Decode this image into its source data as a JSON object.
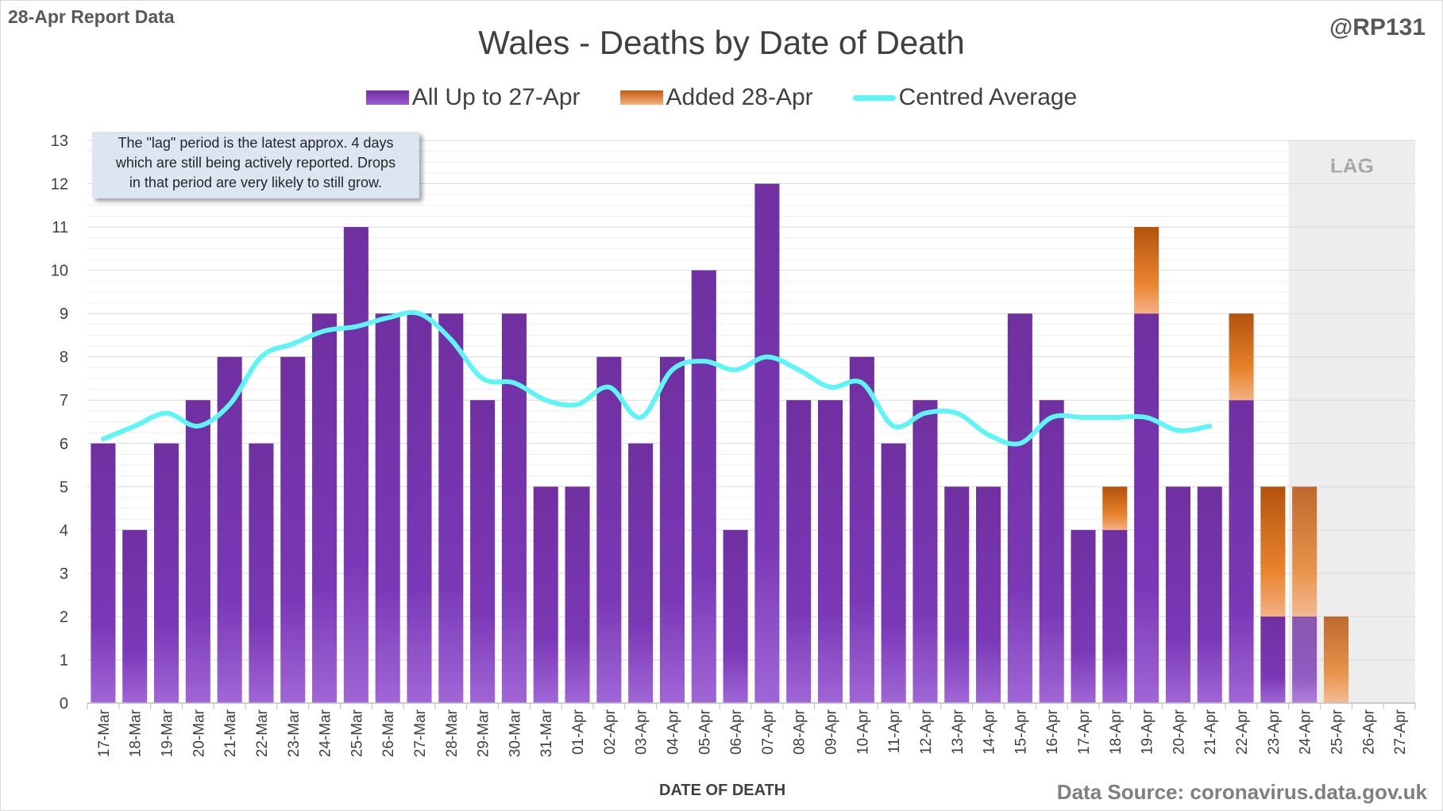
{
  "header": {
    "corner_note": "28-Apr Report Data",
    "author": "@RP131",
    "title": "Wales - Deaths by Date of Death",
    "source": "Data Source: coronavirus.data.gov.uk"
  },
  "legend": {
    "items": [
      {
        "label": "All Up to 27-Apr",
        "color": "#7030a0"
      },
      {
        "label": "Added 28-Apr",
        "color": "#c55a11"
      },
      {
        "label": "Centred Average",
        "color": "#5df5f5"
      }
    ]
  },
  "note": {
    "lines": [
      "The \"lag\" period is the latest approx. 4 days",
      "which are still being actively reported.  Drops",
      "in that period are very likely to still grow."
    ]
  },
  "lag_label": "LAG",
  "chart_data": {
    "type": "bar",
    "title": "Wales - Deaths by Date of Death",
    "xlabel": "DATE OF DEATH",
    "ylabel": "",
    "ylim": [
      0,
      13
    ],
    "yticks": [
      0,
      1,
      2,
      3,
      4,
      5,
      6,
      7,
      8,
      9,
      10,
      11,
      12,
      13
    ],
    "stacked": true,
    "grid": true,
    "legend_position": "top",
    "categories": [
      "17-Mar",
      "18-Mar",
      "19-Mar",
      "20-Mar",
      "21-Mar",
      "22-Mar",
      "23-Mar",
      "24-Mar",
      "25-Mar",
      "26-Mar",
      "27-Mar",
      "28-Mar",
      "29-Mar",
      "30-Mar",
      "31-Mar",
      "01-Apr",
      "02-Apr",
      "03-Apr",
      "04-Apr",
      "05-Apr",
      "06-Apr",
      "07-Apr",
      "08-Apr",
      "09-Apr",
      "10-Apr",
      "11-Apr",
      "12-Apr",
      "13-Apr",
      "14-Apr",
      "15-Apr",
      "16-Apr",
      "17-Apr",
      "18-Apr",
      "19-Apr",
      "20-Apr",
      "21-Apr",
      "22-Apr",
      "23-Apr",
      "24-Apr",
      "25-Apr",
      "26-Apr",
      "27-Apr"
    ],
    "series": [
      {
        "name": "All Up to 27-Apr",
        "type": "bar",
        "color": "#7030a0",
        "values": [
          6,
          4,
          6,
          7,
          8,
          6,
          8,
          9,
          11,
          9,
          9,
          9,
          7,
          9,
          5,
          5,
          8,
          6,
          8,
          10,
          4,
          12,
          7,
          7,
          8,
          6,
          7,
          5,
          5,
          9,
          7,
          4,
          4,
          9,
          5,
          5,
          7,
          2,
          2,
          0,
          0,
          0
        ]
      },
      {
        "name": "Added 28-Apr",
        "type": "bar",
        "color": "#c55a11",
        "values": [
          0,
          0,
          0,
          0,
          0,
          0,
          0,
          0,
          0,
          0,
          0,
          0,
          0,
          0,
          0,
          0,
          0,
          0,
          0,
          0,
          0,
          0,
          0,
          0,
          0,
          0,
          0,
          0,
          0,
          0,
          0,
          0,
          1,
          2,
          0,
          0,
          2,
          3,
          3,
          2,
          0,
          0
        ]
      },
      {
        "name": "Centred Average",
        "type": "line",
        "color": "#5df5f5",
        "values": [
          6.1,
          6.4,
          6.7,
          6.4,
          6.9,
          8.0,
          8.3,
          8.6,
          8.7,
          8.9,
          9.0,
          8.4,
          7.5,
          7.4,
          7.0,
          6.9,
          7.3,
          6.6,
          7.7,
          7.9,
          7.7,
          8.0,
          7.7,
          7.3,
          7.4,
          6.4,
          6.7,
          6.7,
          6.2,
          6.0,
          6.6,
          6.6,
          6.6,
          6.6,
          6.3,
          6.4,
          null,
          null,
          null,
          null,
          null,
          null
        ]
      }
    ],
    "lag_categories": [
      "24-Apr",
      "25-Apr",
      "26-Apr",
      "27-Apr"
    ]
  }
}
